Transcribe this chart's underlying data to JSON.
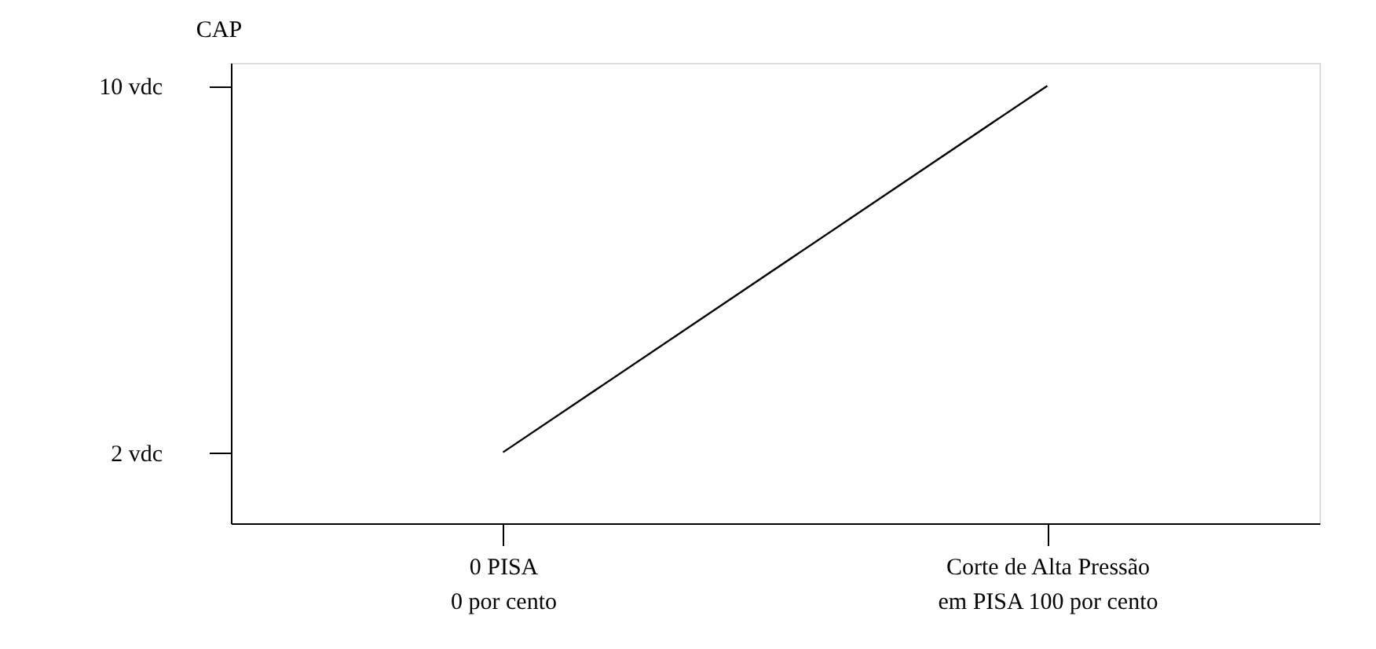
{
  "chart_data": {
    "type": "line",
    "ylabel": "CAP",
    "categories": [
      "0 PISA\n0 por cento",
      "Corte de Alta Pressão\nem PISA 100 por cento"
    ],
    "series": [
      {
        "color": "#000000",
        "values": [
          2,
          10
        ]
      }
    ],
    "ylim": [
      0.45,
      10.5
    ],
    "yticks": [
      {
        "value": 2,
        "label": "2 vdc"
      },
      {
        "value": 10,
        "label": "10 vdc"
      }
    ],
    "grid": false,
    "marker": "none",
    "line_style": "solid"
  }
}
